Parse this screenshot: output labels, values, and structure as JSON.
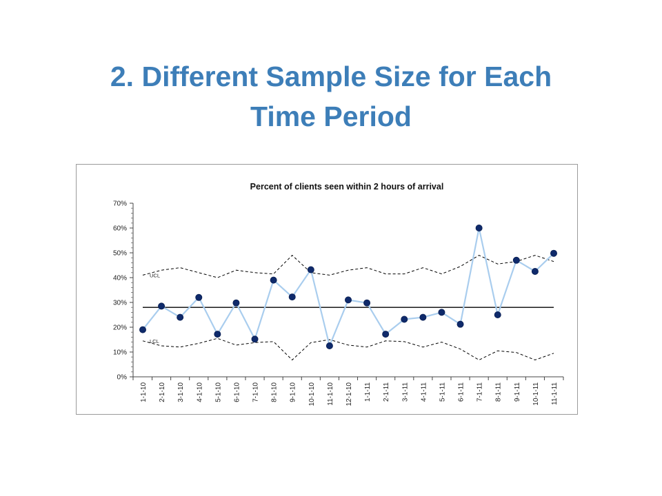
{
  "slide": {
    "title_line1": "2. Different Sample Size for Each",
    "title_line2": "Time Period"
  },
  "colors": {
    "title": "#3d7eb8",
    "series_line": "#a9cdee",
    "marker_fill": "#0f2a6b",
    "center_line": "#000000",
    "limit_line": "#000000"
  },
  "chart_data": {
    "type": "line",
    "title": "Percent of clients seen within 2 hours of arrival",
    "xlabel": "",
    "ylabel": "",
    "ylim": [
      0,
      0.7
    ],
    "y_ticks": [
      0,
      0.1,
      0.2,
      0.3,
      0.4,
      0.5,
      0.6,
      0.7
    ],
    "y_tick_labels": [
      "0%",
      "10%",
      "20%",
      "30%",
      "40%",
      "50%",
      "60%",
      "70%"
    ],
    "grid": false,
    "legend": "none",
    "categories": [
      "1-1-10",
      "2-1-10",
      "3-1-10",
      "4-1-10",
      "5-1-10",
      "6-1-10",
      "7-1-10",
      "8-1-10",
      "9-1-10",
      "10-1-10",
      "11-1-10",
      "12-1-10",
      "1-1-11",
      "2-1-11",
      "3-1-11",
      "4-1-11",
      "5-1-11",
      "6-1-11",
      "7-1-11",
      "8-1-11",
      "9-1-11",
      "10-1-11",
      "11-1-11"
    ],
    "series": [
      {
        "values": [
          0.19,
          0.285,
          0.24,
          0.32,
          0.172,
          0.298,
          0.152,
          0.39,
          0.322,
          0.432,
          0.125,
          0.31,
          0.298,
          0.172,
          0.232,
          0.24,
          0.26,
          0.212,
          0.6,
          0.25,
          0.47,
          0.425,
          0.498
        ]
      }
    ],
    "center_line": 0.28,
    "ucl": [
      0.41,
      0.43,
      0.44,
      0.42,
      0.4,
      0.43,
      0.42,
      0.415,
      0.49,
      0.42,
      0.41,
      0.43,
      0.44,
      0.415,
      0.415,
      0.44,
      0.415,
      0.445,
      0.49,
      0.455,
      0.465,
      0.49,
      0.465
    ],
    "lcl": [
      0.145,
      0.125,
      0.12,
      0.135,
      0.155,
      0.128,
      0.138,
      0.142,
      0.068,
      0.138,
      0.15,
      0.128,
      0.12,
      0.145,
      0.142,
      0.12,
      0.14,
      0.112,
      0.068,
      0.105,
      0.098,
      0.068,
      0.095
    ],
    "annotations": [
      "UCL",
      "LCL"
    ]
  }
}
